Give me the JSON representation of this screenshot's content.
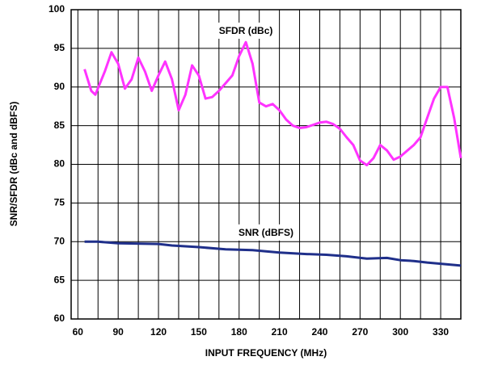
{
  "chart_data": {
    "type": "line",
    "xlabel": "INPUT FREQUENCY (MHz)",
    "ylabel": "SNR/SFDR (dBc and dBFS)",
    "xlim": [
      55,
      345
    ],
    "xticks": [
      60,
      90,
      120,
      150,
      180,
      210,
      240,
      270,
      300,
      330
    ],
    "ylim": [
      60,
      100
    ],
    "yticks": [
      60,
      65,
      70,
      75,
      80,
      85,
      90,
      95,
      100
    ],
    "grid": true,
    "annotations": [
      {
        "text": "SFDR (dBc)",
        "x": 185,
        "y": 97.2
      },
      {
        "text": "SNR (dBFS)",
        "x": 200,
        "y": 71.1
      }
    ],
    "series": [
      {
        "name": "SFDR (dBc)",
        "color": "#ff33ff",
        "x": [
          65,
          70,
          73,
          80,
          85,
          90,
          95,
          100,
          105,
          110,
          115,
          120,
          125,
          130,
          135,
          140,
          145,
          150,
          155,
          160,
          165,
          170,
          175,
          180,
          185,
          190,
          195,
          200,
          205,
          210,
          215,
          220,
          225,
          230,
          240,
          245,
          250,
          255,
          260,
          265,
          270,
          275,
          280,
          285,
          290,
          295,
          300,
          310,
          315,
          320,
          325,
          330,
          335,
          340,
          345
        ],
        "values": [
          92.3,
          89.5,
          89,
          92,
          94.5,
          93,
          89.8,
          91,
          93.8,
          92,
          89.5,
          91.5,
          93.3,
          91,
          87,
          89,
          92.8,
          91.5,
          88.5,
          88.7,
          89.5,
          90.5,
          91.5,
          94,
          95.8,
          93,
          88,
          87.5,
          87.8,
          87,
          85.8,
          85,
          84.7,
          84.8,
          85.4,
          85.5,
          85.2,
          84.6,
          83.5,
          82.5,
          80.5,
          79.9,
          80.8,
          82.5,
          81.8,
          80.6,
          81,
          82.5,
          83.5,
          86,
          88.5,
          90,
          90,
          86,
          80.8
        ]
      },
      {
        "name": "SNR (dBFS)",
        "color": "#1f2f8a",
        "x": [
          65,
          75,
          90,
          120,
          130,
          150,
          170,
          190,
          210,
          230,
          245,
          260,
          275,
          290,
          300,
          310,
          320,
          345
        ],
        "values": [
          70,
          70,
          69.8,
          69.7,
          69.5,
          69.3,
          69,
          68.9,
          68.6,
          68.4,
          68.3,
          68.1,
          67.8,
          67.9,
          67.6,
          67.5,
          67.3,
          66.9
        ]
      }
    ]
  }
}
